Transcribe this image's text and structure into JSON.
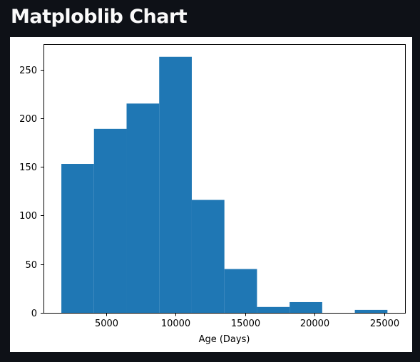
{
  "app": {
    "title": "Matploblib Chart"
  },
  "chart_data": {
    "type": "bar",
    "subtype": "histogram",
    "title": "",
    "xlabel": "Age (Days)",
    "ylabel": "",
    "bin_edges": [
      1785,
      4130,
      6475,
      8820,
      11165,
      13510,
      15855,
      18200,
      20545,
      22890,
      25235
    ],
    "values": [
      153,
      189,
      215,
      263,
      116,
      45,
      6,
      11,
      0,
      3
    ],
    "xlim": [
      500,
      26500
    ],
    "ylim": [
      0,
      276
    ],
    "xticks": [
      5000,
      10000,
      15000,
      20000,
      25000
    ],
    "xtick_labels": [
      "5000",
      "10000",
      "15000",
      "20000",
      "25000"
    ],
    "yticks": [
      0,
      50,
      100,
      150,
      200,
      250
    ],
    "ytick_labels": [
      "0",
      "50",
      "100",
      "150",
      "200",
      "250"
    ],
    "grid": false,
    "bar_color": "#1f77b4"
  }
}
